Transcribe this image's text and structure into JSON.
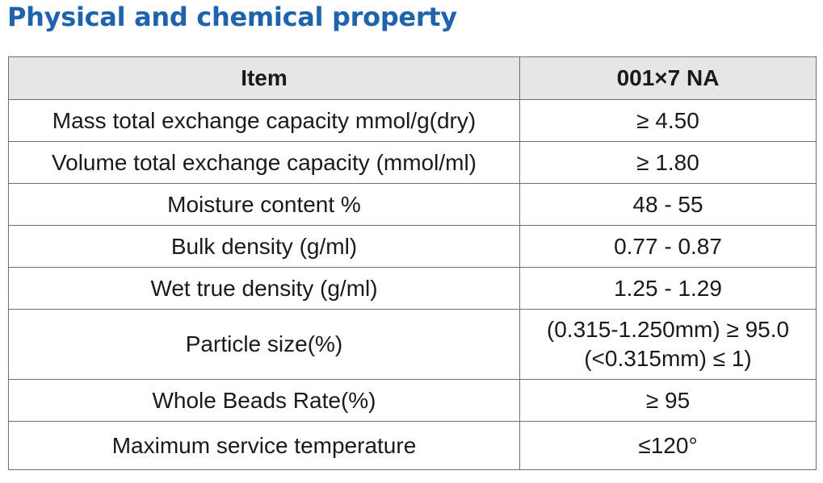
{
  "title": "Physical and chemical property",
  "table": {
    "headers": [
      "Item",
      "001×7 NA"
    ],
    "rows": [
      {
        "item": "Mass total exchange capacity mmol/g(dry)",
        "value": "≥ 4.50"
      },
      {
        "item": "Volume total exchange capacity (mmol/ml)",
        "value": "≥ 1.80"
      },
      {
        "item": "Moisture content %",
        "value": "48 - 55"
      },
      {
        "item": "Bulk density (g/ml)",
        "value": "0.77 - 0.87"
      },
      {
        "item": "Wet true density (g/ml)",
        "value": "1.25 - 1.29"
      },
      {
        "item": "Particle size(%)",
        "value_lines": [
          "(0.315-1.250mm) ≥ 95.0",
          "(<0.315mm) ≤ 1)"
        ]
      },
      {
        "item": "Whole Beads Rate(%)",
        "value": "≥ 95"
      },
      {
        "item": "Maximum service temperature",
        "value": "≤120°"
      }
    ]
  },
  "colors": {
    "title": "#1f63ad",
    "header_bg": "#e6e6e6",
    "border": "#6f6f6f"
  }
}
